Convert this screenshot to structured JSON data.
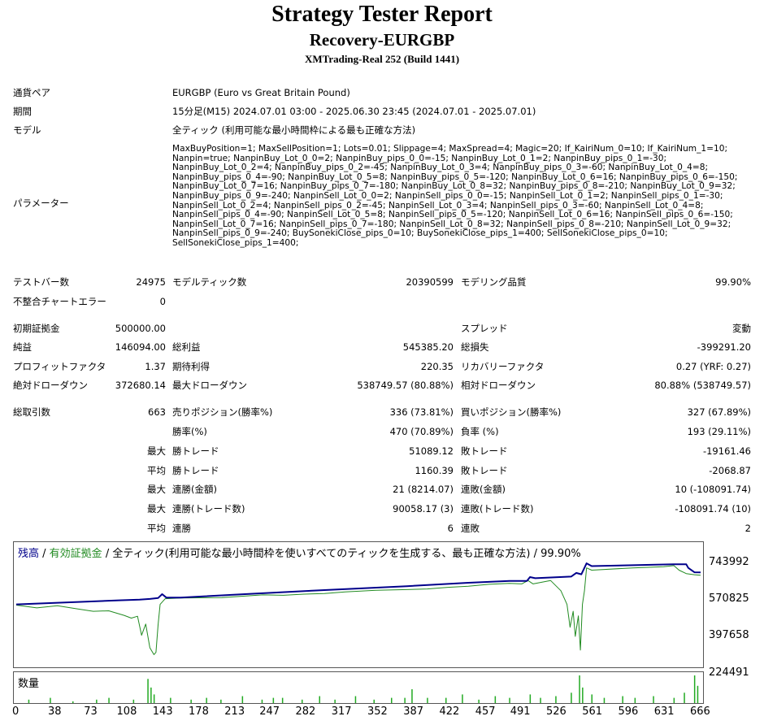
{
  "header": {
    "title": "Strategy Tester Report",
    "ea": "Recovery-EURGBP",
    "server": "XMTrading-Real 252 (Build 1441)"
  },
  "info": {
    "symbol_label": "通貨ペア",
    "symbol": "EURGBP (Euro vs Great Britain Pound)",
    "period_label": "期間",
    "period": "15分足(M15) 2024.07.01 03:00 - 2025.06.30 23:45 (2024.07.01 - 2025.07.01)",
    "model_label": "モデル",
    "model": "全ティック (利用可能な最小時間枠による最も正確な方法)",
    "params_label": "パラメーター",
    "params": "MaxBuyPosition=1; MaxSellPosition=1; Lots=0.01; Slippage=4; MaxSpread=4; Magic=20; If_KairiNum_0=10; If_KairiNum_1=10; Nanpin=true; NanpinBuy_Lot_0_0=2; NanpinBuy_pips_0_0=-15; NanpinBuy_Lot_0_1=2; NanpinBuy_pips_0_1=-30; NanpinBuy_Lot_0_2=4; NanpinBuy_pips_0_2=-45; NanpinBuy_Lot_0_3=4; NanpinBuy_pips_0_3=-60; NanpinBuy_Lot_0_4=8; NanpinBuy_pips_0_4=-90; NanpinBuy_Lot_0_5=8; NanpinBuy_pips_0_5=-120; NanpinBuy_Lot_0_6=16; NanpinBuy_pips_0_6=-150; NanpinBuy_Lot_0_7=16; NanpinBuy_pips_0_7=-180; NanpinBuy_Lot_0_8=32; NanpinBuy_pips_0_8=-210; NanpinBuy_Lot_0_9=32; NanpinBuy_pips_0_9=-240; NanpinSell_Lot_0_0=2; NanpinSell_pips_0_0=-15; NanpinSell_Lot_0_1=2; NanpinSell_pips_0_1=-30; NanpinSell_Lot_0_2=4; NanpinSell_pips_0_2=-45; NanpinSell_Lot_0_3=4; NanpinSell_pips_0_3=-60; NanpinSell_Lot_0_4=8; NanpinSell_pips_0_4=-90; NanpinSell_Lot_0_5=8; NanpinSell_pips_0_5=-120; NanpinSell_Lot_0_6=16; NanpinSell_pips_0_6=-150; NanpinSell_Lot_0_7=16; NanpinSell_pips_0_7=-180; NanpinSell_Lot_0_8=32; NanpinSell_pips_0_8=-210; NanpinSell_Lot_0_9=32; NanpinSell_pips_0_9=-240; BuySonekiClose_pips_0=10; BuySonekiClose_pips_1=400; SellSonekiClose_pips_0=10; SellSonekiClose_pips_1=400;"
  },
  "stats": {
    "bars_label": "テストバー数",
    "bars": "24975",
    "ticks_label": "モデルティック数",
    "ticks": "20390599",
    "quality_label": "モデリング品質",
    "quality": "99.90%",
    "errors_label": "不整合チャートエラー",
    "errors": "0",
    "deposit_label": "初期証拠金",
    "deposit": "500000.00",
    "spread_label": "スプレッド",
    "spread": "変動",
    "net_label": "純益",
    "net": "146094.00",
    "gross_profit_label": "総利益",
    "gross_profit": "545385.20",
    "gross_loss_label": "総損失",
    "gross_loss": "-399291.20",
    "pf_label": "プロフィットファクタ",
    "pf": "1.37",
    "expected_label": "期待利得",
    "expected": "220.35",
    "rf_label": "リカバリーファクタ",
    "rf": "0.27 (YRF: 0.27)",
    "abs_dd_label": "絶対ドローダウン",
    "abs_dd": "372680.14",
    "max_dd_label": "最大ドローダウン",
    "max_dd": "538749.57 (80.88%)",
    "rel_dd_label": "相対ドローダウン",
    "rel_dd": "80.88% (538749.57)",
    "trades_label": "総取引数",
    "trades": "663",
    "short_label": "売りポジション(勝率%)",
    "short": "336 (73.81%)",
    "long_label": "買いポジション(勝率%)",
    "long": "327 (67.89%)",
    "winrate_label": "勝率(%)",
    "winrate": "470 (70.89%)",
    "lossrate_label": "負率 (%)",
    "lossrate": "193 (29.11%)",
    "max1": "最大",
    "largest_win_label": "勝トレード",
    "largest_win": "51089.12",
    "largest_loss_label": "敗トレード",
    "largest_loss": "-19161.46",
    "avg1": "平均",
    "avg_win_label": "勝トレード",
    "avg_win": "1160.39",
    "avg_loss_label": "敗トレード",
    "avg_loss": "-2068.87",
    "max2": "最大",
    "cons_win_money_label": "連勝(金額)",
    "cons_win_money": "21 (8214.07)",
    "cons_loss_money_label": "連敗(金額)",
    "cons_loss_money": "10 (-108091.74)",
    "max3": "最大",
    "cons_profit_label": "連勝(トレード数)",
    "cons_profit": "90058.17 (3)",
    "cons_loss_label": "連敗(トレード数)",
    "cons_loss": "-108091.74 (10)",
    "avg2": "平均",
    "avg_cons_win_label": "連勝",
    "avg_cons_win": "6",
    "avg_cons_loss_label": "連敗",
    "avg_cons_loss": "2"
  },
  "chart_data": {
    "type": "line",
    "legend_balance": "残高",
    "legend_sep1": " / ",
    "legend_equity": "有効証拠金",
    "legend_sep2": " / ",
    "legend_model": "全ティック(利用可能な最小時間枠を使いすべてのティックを生成する、最も正確な方法)",
    "legend_sep3": " / ",
    "legend_quality": "99.90%",
    "volume_label": "数量",
    "colors": {
      "balance": "#00008b",
      "equity": "#228b22",
      "volume": "#22aa22"
    },
    "y_ticks": [
      "743992",
      "570825",
      "397658",
      "224491"
    ],
    "y_tick_values": [
      743992,
      570825,
      397658,
      224491
    ],
    "x_ticks": [
      "0",
      "38",
      "73",
      "108",
      "143",
      "178",
      "213",
      "247",
      "282",
      "317",
      "352",
      "387",
      "422",
      "457",
      "491",
      "526",
      "561",
      "596",
      "631",
      "666"
    ],
    "x_range": [
      0,
      666
    ],
    "y_range": [
      224491,
      773000
    ],
    "balance": [
      [
        0,
        500000
      ],
      [
        100,
        518000
      ],
      [
        120,
        521000
      ],
      [
        130,
        524000
      ],
      [
        138,
        528000
      ],
      [
        142,
        545000
      ],
      [
        146,
        530000
      ],
      [
        160,
        530000
      ],
      [
        230,
        547000
      ],
      [
        300,
        563000
      ],
      [
        380,
        580000
      ],
      [
        440,
        595000
      ],
      [
        480,
        603000
      ],
      [
        497,
        603000
      ],
      [
        500,
        620000
      ],
      [
        505,
        615000
      ],
      [
        540,
        622000
      ],
      [
        545,
        638000
      ],
      [
        550,
        632000
      ],
      [
        555,
        680000
      ],
      [
        560,
        668000
      ],
      [
        640,
        676000
      ],
      [
        652,
        676000
      ],
      [
        654,
        660000
      ],
      [
        660,
        641000
      ],
      [
        666,
        640000
      ]
    ],
    "equity": [
      [
        0,
        497000
      ],
      [
        20,
        485000
      ],
      [
        40,
        494000
      ],
      [
        60,
        480000
      ],
      [
        75,
        470000
      ],
      [
        90,
        472000
      ],
      [
        105,
        452000
      ],
      [
        112,
        440000
      ],
      [
        118,
        448000
      ],
      [
        122,
        365000
      ],
      [
        126,
        414000
      ],
      [
        130,
        310000
      ],
      [
        134,
        280000
      ],
      [
        136,
        290000
      ],
      [
        138,
        410000
      ],
      [
        140,
        500000
      ],
      [
        145,
        525000
      ],
      [
        160,
        528000
      ],
      [
        200,
        530000
      ],
      [
        240,
        542000
      ],
      [
        260,
        540000
      ],
      [
        280,
        545000
      ],
      [
        300,
        548000
      ],
      [
        320,
        555000
      ],
      [
        350,
        562000
      ],
      [
        380,
        565000
      ],
      [
        400,
        568000
      ],
      [
        420,
        575000
      ],
      [
        440,
        580000
      ],
      [
        460,
        588000
      ],
      [
        480,
        592000
      ],
      [
        492,
        590000
      ],
      [
        498,
        605000
      ],
      [
        503,
        590000
      ],
      [
        520,
        605000
      ],
      [
        530,
        560000
      ],
      [
        536,
        500000
      ],
      [
        539,
        400000
      ],
      [
        542,
        470000
      ],
      [
        544,
        360000
      ],
      [
        547,
        450000
      ],
      [
        549,
        300000
      ],
      [
        551,
        500000
      ],
      [
        553,
        560000
      ],
      [
        555,
        660000
      ],
      [
        560,
        650000
      ],
      [
        600,
        660000
      ],
      [
        630,
        665000
      ],
      [
        640,
        670000
      ],
      [
        645,
        650000
      ],
      [
        652,
        635000
      ],
      [
        660,
        630000
      ],
      [
        666,
        628000
      ]
    ],
    "volume": [
      [
        12,
        2
      ],
      [
        33,
        3
      ],
      [
        55,
        1
      ],
      [
        78,
        2
      ],
      [
        90,
        3
      ],
      [
        114,
        2
      ],
      [
        128,
        14
      ],
      [
        131,
        9
      ],
      [
        134,
        5
      ],
      [
        150,
        3
      ],
      [
        170,
        2
      ],
      [
        185,
        3
      ],
      [
        199,
        2
      ],
      [
        220,
        4
      ],
      [
        239,
        2
      ],
      [
        250,
        3
      ],
      [
        259,
        3
      ],
      [
        278,
        2
      ],
      [
        295,
        4
      ],
      [
        310,
        2
      ],
      [
        330,
        4
      ],
      [
        348,
        2
      ],
      [
        365,
        3
      ],
      [
        378,
        3
      ],
      [
        385,
        8
      ],
      [
        400,
        3
      ],
      [
        418,
        3
      ],
      [
        434,
        5
      ],
      [
        450,
        2
      ],
      [
        466,
        4
      ],
      [
        480,
        3
      ],
      [
        500,
        5
      ],
      [
        510,
        3
      ],
      [
        525,
        4
      ],
      [
        540,
        6
      ],
      [
        548,
        16
      ],
      [
        551,
        9
      ],
      [
        560,
        5
      ],
      [
        572,
        3
      ],
      [
        590,
        4
      ],
      [
        602,
        3
      ],
      [
        620,
        4
      ],
      [
        640,
        3
      ],
      [
        650,
        6
      ],
      [
        660,
        16
      ],
      [
        663,
        10
      ]
    ],
    "volume_max": 16
  }
}
